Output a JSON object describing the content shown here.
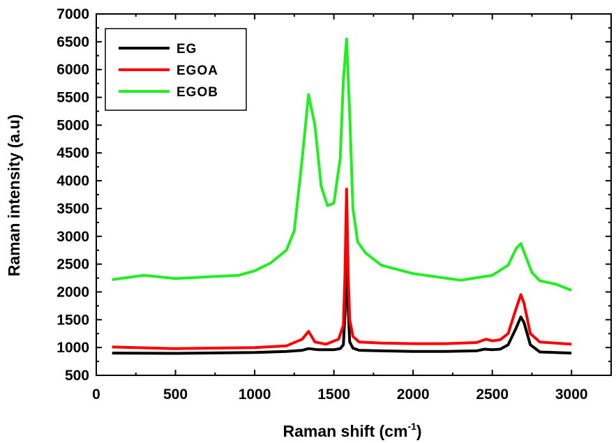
{
  "chart_data": {
    "type": "line",
    "title": "",
    "xlabel": "Raman shift (cm",
    "xlabel_sup": "-1",
    "xlabel_close": ")",
    "ylabel": "Raman intensity (a.u)",
    "xlim": [
      0,
      3250
    ],
    "ylim": [
      500,
      7000
    ],
    "x_ticks": [
      0,
      500,
      1000,
      1500,
      2000,
      2500,
      3000
    ],
    "y_ticks": [
      500,
      1000,
      1500,
      2000,
      2500,
      3000,
      3500,
      4000,
      4500,
      5000,
      5500,
      6000,
      6500,
      7000
    ],
    "grid": false,
    "legend_position": "top-left",
    "series": [
      {
        "name": "EG",
        "color": "#000000",
        "x": [
          100,
          500,
          1000,
          1200,
          1300,
          1340,
          1400,
          1500,
          1540,
          1560,
          1570,
          1580,
          1590,
          1600,
          1620,
          1660,
          1800,
          2000,
          2200,
          2400,
          2450,
          2500,
          2550,
          2600,
          2650,
          2680,
          2700,
          2740,
          2800,
          3000
        ],
        "y": [
          900,
          895,
          910,
          930,
          950,
          980,
          960,
          960,
          980,
          1050,
          1600,
          2900,
          1700,
          1100,
          990,
          950,
          940,
          930,
          930,
          940,
          970,
          960,
          970,
          1050,
          1350,
          1550,
          1450,
          1050,
          920,
          900
        ]
      },
      {
        "name": "EGOA",
        "color": "#ff0000",
        "x": [
          100,
          500,
          1000,
          1200,
          1300,
          1340,
          1380,
          1450,
          1530,
          1560,
          1570,
          1580,
          1590,
          1600,
          1620,
          1660,
          1800,
          2000,
          2200,
          2400,
          2460,
          2500,
          2550,
          2600,
          2650,
          2680,
          2700,
          2740,
          2800,
          3000
        ],
        "y": [
          1010,
          980,
          1000,
          1030,
          1150,
          1290,
          1100,
          1060,
          1150,
          1400,
          2300,
          3850,
          2300,
          1500,
          1200,
          1100,
          1080,
          1070,
          1070,
          1090,
          1150,
          1120,
          1140,
          1250,
          1700,
          1950,
          1800,
          1250,
          1100,
          1060
        ]
      },
      {
        "name": "EGOB",
        "color": "#22ee22",
        "x": [
          100,
          300,
          500,
          700,
          900,
          1000,
          1100,
          1200,
          1250,
          1300,
          1340,
          1380,
          1420,
          1460,
          1500,
          1540,
          1560,
          1580,
          1600,
          1620,
          1650,
          1700,
          1800,
          2000,
          2200,
          2300,
          2500,
          2600,
          2650,
          2680,
          2700,
          2750,
          2800,
          2900,
          3000
        ],
        "y": [
          2220,
          2300,
          2240,
          2270,
          2300,
          2380,
          2520,
          2750,
          3100,
          4400,
          5550,
          5000,
          3900,
          3550,
          3600,
          4400,
          5800,
          6550,
          5200,
          3500,
          2900,
          2700,
          2480,
          2330,
          2250,
          2210,
          2300,
          2480,
          2780,
          2870,
          2720,
          2350,
          2200,
          2140,
          2030
        ]
      }
    ]
  }
}
